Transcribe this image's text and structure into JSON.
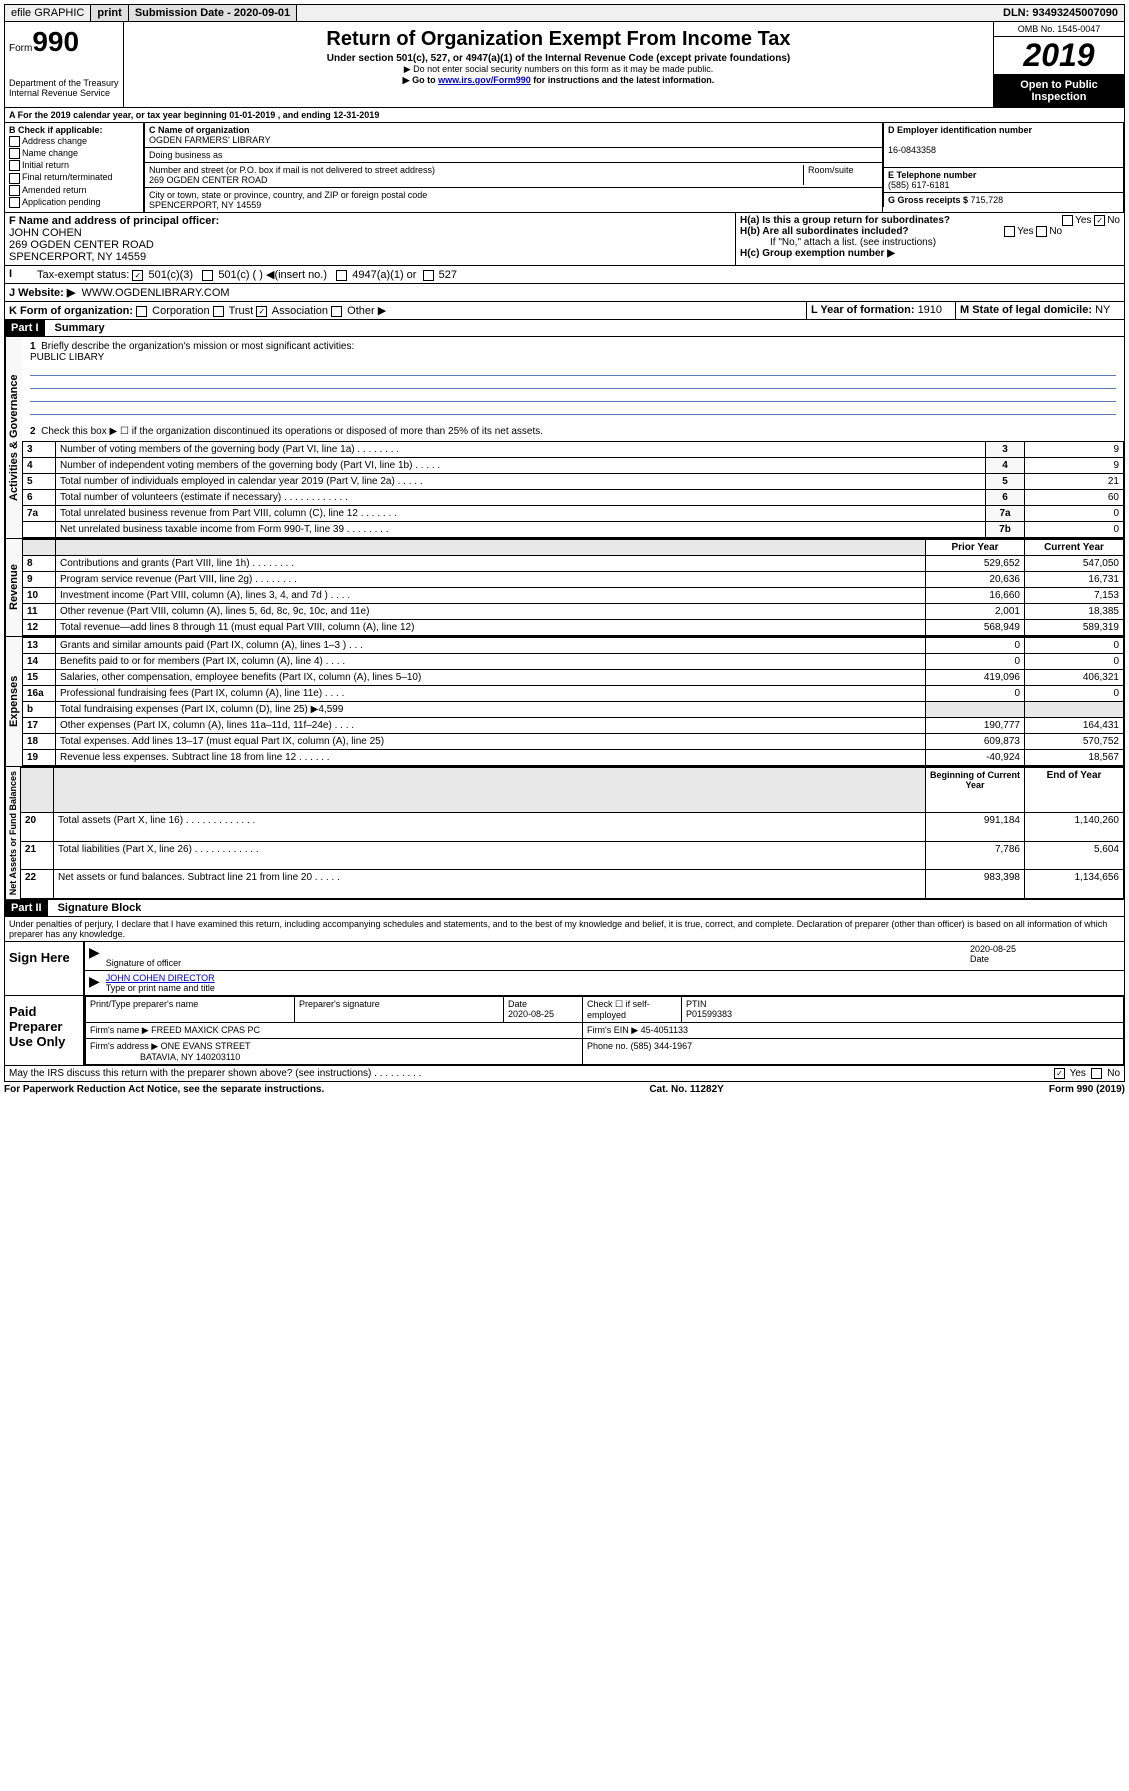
{
  "topbar": {
    "efile": "efile GRAPHIC",
    "print": "print",
    "submission_label": "Submission Date - ",
    "submission_date": "2020-09-01",
    "dln_label": "DLN: ",
    "dln": "93493245007090"
  },
  "header": {
    "form_prefix": "Form",
    "form_number": "990",
    "dept": "Department of the Treasury",
    "irs": "Internal Revenue Service",
    "title": "Return of Organization Exempt From Income Tax",
    "subtitle": "Under section 501(c), 527, or 4947(a)(1) of the Internal Revenue Code (except private foundations)",
    "note1": "▶ Do not enter social security numbers on this form as it may be made public.",
    "note2_pre": "▶ Go to ",
    "note2_link": "www.irs.gov/Form990",
    "note2_post": " for instructions and the latest information.",
    "omb": "OMB No. 1545-0047",
    "year": "2019",
    "open": "Open to Public Inspection"
  },
  "period": {
    "line": "A For the 2019 calendar year, or tax year beginning 01-01-2019   , and ending 12-31-2019"
  },
  "boxB": {
    "label": "B Check if applicable:",
    "opts": [
      "Address change",
      "Name change",
      "Initial return",
      "Final return/terminated",
      "Amended return",
      "Application pending"
    ]
  },
  "boxC": {
    "label": "C Name of organization",
    "name": "OGDEN FARMERS' LIBRARY",
    "dba_label": "Doing business as",
    "addr_label": "Number and street (or P.O. box if mail is not delivered to street address)",
    "room": "Room/suite",
    "addr": "269 OGDEN CENTER ROAD",
    "city_label": "City or town, state or province, country, and ZIP or foreign postal code",
    "city": "SPENCERPORT, NY  14559"
  },
  "boxD": {
    "label": "D Employer identification number",
    "ein": "16-0843358"
  },
  "boxE": {
    "label": "E Telephone number",
    "phone": "(585) 617-6181"
  },
  "boxF": {
    "label": "F Name and address of principal officer:",
    "name": "JOHN COHEN",
    "addr1": "269 OGDEN CENTER ROAD",
    "addr2": "SPENCERPORT, NY  14559"
  },
  "boxG": {
    "label": "G Gross receipts $ ",
    "val": "715,728"
  },
  "boxH": {
    "a": "H(a)  Is this a group return for subordinates?",
    "b": "H(b)  Are all subordinates included?",
    "note": "If \"No,\" attach a list. (see instructions)",
    "c": "H(c)  Group exemption number ▶"
  },
  "boxI": {
    "label": "Tax-exempt status:",
    "o1": "501(c)(3)",
    "o2": "501(c) (   ) ◀(insert no.)",
    "o3": "4947(a)(1) or",
    "o4": "527"
  },
  "boxJ": {
    "label": "J   Website: ▶",
    "val": "WWW.OGDENLIBRARY.COM"
  },
  "boxK": {
    "label": "K Form of organization:",
    "opts": [
      "Corporation",
      "Trust",
      "Association",
      "Other ▶"
    ]
  },
  "boxL": {
    "label": "L Year of formation: ",
    "val": "1910"
  },
  "boxM": {
    "label": "M State of legal domicile: ",
    "val": "NY"
  },
  "part1": {
    "header": "Part I",
    "title": "Summary",
    "line1": "Briefly describe the organization's mission or most significant activities:",
    "mission": "PUBLIC LIBARY",
    "line2": "Check this box ▶ ☐  if the organization discontinued its operations or disposed of more than 25% of its net assets."
  },
  "governance": {
    "label": "Activities & Governance",
    "rows": [
      {
        "n": "3",
        "d": "Number of voting members of the governing body (Part VI, line 1a)   .   .   .   .   .   .   .   .",
        "b": "3",
        "v": "9"
      },
      {
        "n": "4",
        "d": "Number of independent voting members of the governing body (Part VI, line 1b)   .   .   .   .   .",
        "b": "4",
        "v": "9"
      },
      {
        "n": "5",
        "d": "Total number of individuals employed in calendar year 2019 (Part V, line 2a)   .   .   .   .   .",
        "b": "5",
        "v": "21"
      },
      {
        "n": "6",
        "d": "Total number of volunteers (estimate if necessary)   .   .   .   .   .   .   .   .   .   .   .   .",
        "b": "6",
        "v": "60"
      },
      {
        "n": "7a",
        "d": "Total unrelated business revenue from Part VIII, column (C), line 12   .   .   .   .   .   .   .",
        "b": "7a",
        "v": "0"
      },
      {
        "n": "",
        "d": "Net unrelated business taxable income from Form 990-T, line 39   .   .   .   .   .   .   .   .",
        "b": "7b",
        "v": "0"
      }
    ]
  },
  "twocol_header": {
    "prior": "Prior Year",
    "curr": "Current Year"
  },
  "revenue": {
    "label": "Revenue",
    "rows": [
      {
        "n": "8",
        "d": "Contributions and grants (Part VIII, line 1h)   .   .   .   .   .   .   .   .",
        "p": "529,652",
        "c": "547,050"
      },
      {
        "n": "9",
        "d": "Program service revenue (Part VIII, line 2g)   .   .   .   .   .   .   .   .",
        "p": "20,636",
        "c": "16,731"
      },
      {
        "n": "10",
        "d": "Investment income (Part VIII, column (A), lines 3, 4, and 7d )   .   .   .   .",
        "p": "16,660",
        "c": "7,153"
      },
      {
        "n": "11",
        "d": "Other revenue (Part VIII, column (A), lines 5, 6d, 8c, 9c, 10c, and 11e)",
        "p": "2,001",
        "c": "18,385"
      },
      {
        "n": "12",
        "d": "Total revenue—add lines 8 through 11 (must equal Part VIII, column (A), line 12)",
        "p": "568,949",
        "c": "589,319"
      }
    ]
  },
  "expenses": {
    "label": "Expenses",
    "rows": [
      {
        "n": "13",
        "d": "Grants and similar amounts paid (Part IX, column (A), lines 1–3 )   .   .   .",
        "p": "0",
        "c": "0"
      },
      {
        "n": "14",
        "d": "Benefits paid to or for members (Part IX, column (A), line 4)   .   .   .   .",
        "p": "0",
        "c": "0"
      },
      {
        "n": "15",
        "d": "Salaries, other compensation, employee benefits (Part IX, column (A), lines 5–10)",
        "p": "419,096",
        "c": "406,321"
      },
      {
        "n": "16a",
        "d": "Professional fundraising fees (Part IX, column (A), line 11e)   .   .   .   .",
        "p": "0",
        "c": "0"
      },
      {
        "n": "b",
        "d": "Total fundraising expenses (Part IX, column (D), line 25) ▶4,599",
        "p": "",
        "c": ""
      },
      {
        "n": "17",
        "d": "Other expenses (Part IX, column (A), lines 11a–11d, 11f–24e)   .   .   .   .",
        "p": "190,777",
        "c": "164,431"
      },
      {
        "n": "18",
        "d": "Total expenses. Add lines 13–17 (must equal Part IX, column (A), line 25)",
        "p": "609,873",
        "c": "570,752"
      },
      {
        "n": "19",
        "d": "Revenue less expenses. Subtract line 18 from line 12   .   .   .   .   .   .",
        "p": "-40,924",
        "c": "18,567"
      }
    ]
  },
  "netassets_header": {
    "beg": "Beginning of Current Year",
    "end": "End of Year"
  },
  "netassets": {
    "label": "Net Assets or Fund Balances",
    "rows": [
      {
        "n": "20",
        "d": "Total assets (Part X, line 16)   .   .   .   .   .   .   .   .   .   .   .   .   .",
        "p": "991,184",
        "c": "1,140,260"
      },
      {
        "n": "21",
        "d": "Total liabilities (Part X, line 26)   .   .   .   .   .   .   .   .   .   .   .   .",
        "p": "7,786",
        "c": "5,604"
      },
      {
        "n": "22",
        "d": "Net assets or fund balances. Subtract line 21 from line 20   .   .   .   .   .",
        "p": "983,398",
        "c": "1,134,656"
      }
    ]
  },
  "part2": {
    "header": "Part II",
    "title": "Signature Block",
    "perjury": "Under penalties of perjury, I declare that I have examined this return, including accompanying schedules and statements, and to the best of my knowledge and belief, it is true, correct, and complete. Declaration of preparer (other than officer) is based on all information of which preparer has any knowledge."
  },
  "sign": {
    "label": "Sign Here",
    "sig_label": "Signature of officer",
    "date": "2020-08-25",
    "date_label": "Date",
    "name": "JOHN COHEN  DIRECTOR",
    "name_label": "Type or print name and title"
  },
  "preparer": {
    "label": "Paid Preparer Use Only",
    "h1": "Print/Type preparer's name",
    "h2": "Preparer's signature",
    "h3": "Date",
    "date": "2020-08-25",
    "h4": "Check ☐ if self-employed",
    "h5": "PTIN",
    "ptin": "P01599383",
    "firm_label": "Firm's name    ▶",
    "firm": "FREED MAXICK CPAS PC",
    "ein_label": "Firm's EIN ▶",
    "ein": "45-4051133",
    "addr_label": "Firm's address ▶",
    "addr1": "ONE EVANS STREET",
    "addr2": "BATAVIA, NY  140203110",
    "phone_label": "Phone no. ",
    "phone": "(585) 344-1967"
  },
  "discuss": "May the IRS discuss this return with the preparer shown above? (see instructions)   .   .   .   .   .   .   .   .   .",
  "footer": {
    "left": "For Paperwork Reduction Act Notice, see the separate instructions.",
    "mid": "Cat. No. 11282Y",
    "right": "Form 990 (2019)"
  }
}
